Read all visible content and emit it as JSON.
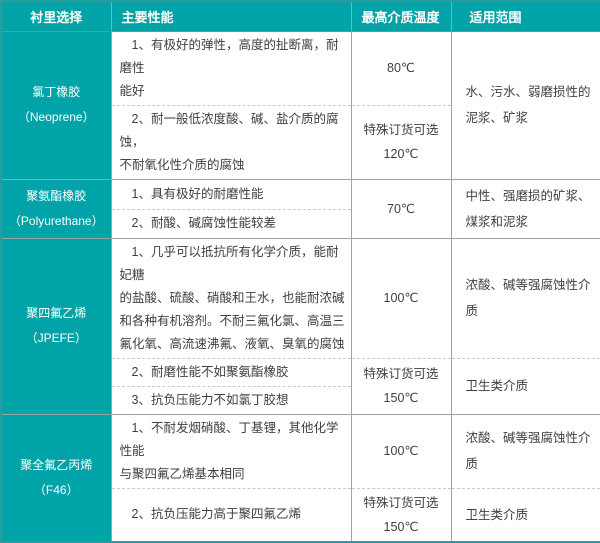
{
  "colors": {
    "header_teal": "#00a4a8",
    "frame_teal": "#2f9ba0",
    "grid_gray": "#95a6a6",
    "dashed_gray": "#c9c9c9",
    "header_text": "#ffffff",
    "body_text": "#404040"
  },
  "table": {
    "columns": [
      "衬里选择",
      "主要性能",
      "最高介质温度",
      "适用范围"
    ],
    "rows": [
      {
        "name": "氯丁橡胶",
        "alias": "（Neoprene）",
        "applicable": "水、污水、弱磨损性的\n泥浆、矿浆",
        "subrows": [
          {
            "perf": "1、有极好的弹性，高度的扯断离，耐磨性\n能好",
            "temp": "80℃"
          },
          {
            "perf": "2、耐一般低浓度酸、碱、盐介质的腐蚀，\n不耐氧化性介质的腐蚀",
            "temp": "特殊订货可选\n120℃"
          }
        ]
      },
      {
        "name": "聚氨酯橡胶",
        "alias": "（Polyurethane）",
        "temp": "70℃",
        "applicable": "中性、强磨损的矿浆、\n煤浆和泥浆",
        "subrows": [
          {
            "perf": "1、具有极好的耐磨性能"
          },
          {
            "perf": "2、耐酸、碱腐蚀性能较差"
          }
        ]
      },
      {
        "name": "聚四氟乙烯",
        "alias": "（JPEFE）",
        "subrows": [
          {
            "perf": "1、几乎可以抵抗所有化学介质，能耐妃糖\n的盐酸、硫酸、硝酸和王水，也能耐浓碱\n和各种有机溶剂。不耐三氟化氯、高温三\n氟化氧、高流速沸氟、液氧、臭氧的腐蚀",
            "temp": "100℃",
            "applicable": "浓酸、碱等强腐蚀性介\n质"
          },
          {
            "perf": "2、耐磨性能不如聚氨酯橡胶",
            "temp": "特殊订货可选\n150℃",
            "applicable": "卫生类介质"
          },
          {
            "perf": "3、抗负压能力不如氯丁胶想"
          }
        ]
      },
      {
        "name": "聚全氟乙丙烯",
        "alias": "（F46）",
        "subrows": [
          {
            "perf": "1、不耐发烟硝酸、丁基锂，其他化学性能\n与聚四氟乙烯基本相同",
            "temp": "100℃",
            "applicable": "浓酸、碱等强腐蚀性介\n质"
          },
          {
            "perf": "2、抗负压能力高于聚四氟乙烯",
            "temp": "特殊订货可选\n150℃",
            "applicable": "卫生类介质"
          }
        ]
      }
    ]
  }
}
